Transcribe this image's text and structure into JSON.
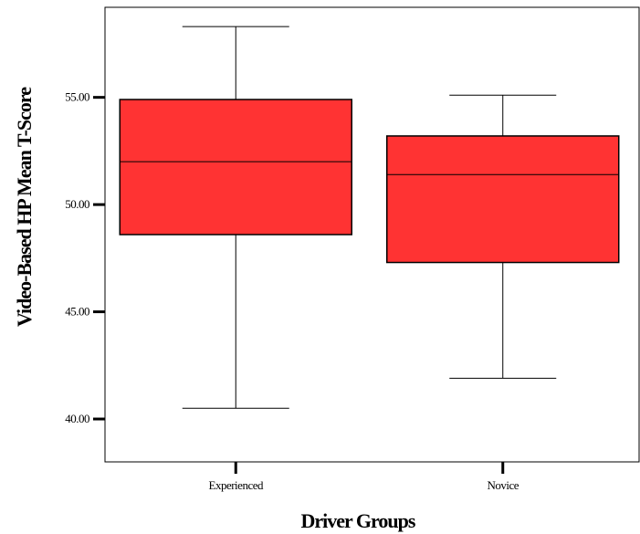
{
  "chart_data": {
    "type": "boxplot",
    "xlabel": "Driver Groups",
    "ylabel": "Video-Based HP Mean T-Score",
    "ylim": [
      38.0,
      59.2
    ],
    "yticks": [
      "40.00",
      "45.00",
      "50.00",
      "55.00"
    ],
    "categories": [
      "Experienced",
      "Novice"
    ],
    "boxes": [
      {
        "category": "Experienced",
        "min": 40.5,
        "q1": 48.6,
        "median": 52.0,
        "q3": 54.9,
        "max": 58.3
      },
      {
        "category": "Novice",
        "min": 41.9,
        "q1": 47.3,
        "median": 51.4,
        "q3": 53.2,
        "max": 55.1
      }
    ],
    "grid": false,
    "box_color": "#ff3333"
  }
}
